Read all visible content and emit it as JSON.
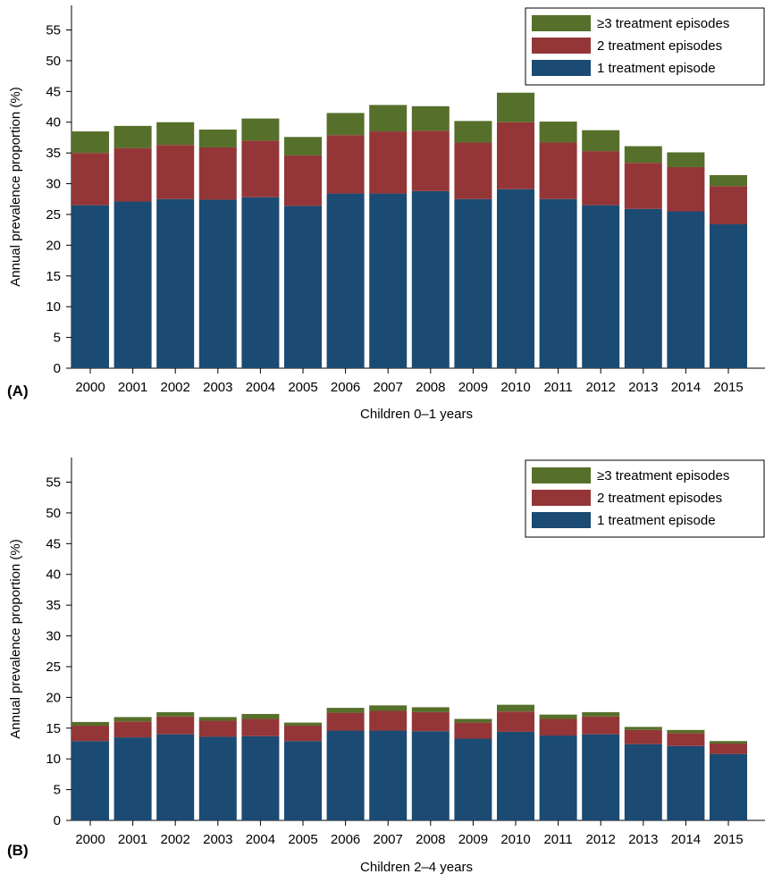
{
  "chart_data": [
    {
      "type": "bar",
      "stacked": true,
      "panel_label": "(A)",
      "xlabel": "Children 0–1 years",
      "ylabel": "Annual prevalence proportion (%)",
      "ylim": [
        0,
        59
      ],
      "yticks": [
        0,
        5,
        10,
        15,
        20,
        25,
        30,
        35,
        40,
        45,
        50,
        55
      ],
      "grid": false,
      "legend_position": "top-right",
      "categories": [
        "2000",
        "2001",
        "2002",
        "2003",
        "2004",
        "2005",
        "2006",
        "2007",
        "2008",
        "2009",
        "2010",
        "2011",
        "2012",
        "2013",
        "2014",
        "2015"
      ],
      "series": [
        {
          "name": "1 treatment episode",
          "color": "#1b4a72",
          "values": [
            26.5,
            27.1,
            27.5,
            27.4,
            27.8,
            26.4,
            28.4,
            28.4,
            28.8,
            27.5,
            29.1,
            27.5,
            26.5,
            25.9,
            25.5,
            23.4
          ]
        },
        {
          "name": "2 treatment episodes",
          "color": "#943638",
          "values": [
            8.5,
            8.7,
            8.8,
            8.5,
            9.2,
            8.2,
            9.5,
            10.1,
            9.8,
            9.2,
            10.9,
            9.2,
            8.8,
            7.5,
            7.2,
            6.2
          ]
        },
        {
          "name": "≥3 treatment episodes",
          "color": "#566f2a",
          "values": [
            3.5,
            3.6,
            3.7,
            2.9,
            3.6,
            3.0,
            3.6,
            4.3,
            4.0,
            3.5,
            4.8,
            3.4,
            3.4,
            2.7,
            2.4,
            1.8
          ]
        }
      ]
    },
    {
      "type": "bar",
      "stacked": true,
      "panel_label": "(B)",
      "xlabel": "Children 2–4 years",
      "ylabel": "Annual prevalence proportion (%)",
      "ylim": [
        0,
        59
      ],
      "yticks": [
        0,
        5,
        10,
        15,
        20,
        25,
        30,
        35,
        40,
        45,
        50,
        55
      ],
      "grid": false,
      "legend_position": "top-right",
      "categories": [
        "2000",
        "2001",
        "2002",
        "2003",
        "2004",
        "2005",
        "2006",
        "2007",
        "2008",
        "2009",
        "2010",
        "2011",
        "2012",
        "2013",
        "2014",
        "2015"
      ],
      "series": [
        {
          "name": "1 treatment episode",
          "color": "#1b4a72",
          "values": [
            12.9,
            13.5,
            14.0,
            13.6,
            13.7,
            12.9,
            14.6,
            14.6,
            14.5,
            13.3,
            14.4,
            13.8,
            14.0,
            12.4,
            12.1,
            10.8
          ]
        },
        {
          "name": "2 treatment episodes",
          "color": "#943638",
          "values": [
            2.5,
            2.6,
            2.9,
            2.6,
            2.8,
            2.5,
            2.9,
            3.2,
            3.1,
            2.6,
            3.3,
            2.7,
            2.9,
            2.3,
            2.1,
            1.7
          ]
        },
        {
          "name": "≥3 treatment episodes",
          "color": "#566f2a",
          "values": [
            0.6,
            0.7,
            0.7,
            0.6,
            0.8,
            0.5,
            0.8,
            0.9,
            0.8,
            0.6,
            1.1,
            0.7,
            0.7,
            0.5,
            0.5,
            0.4
          ]
        }
      ]
    }
  ]
}
